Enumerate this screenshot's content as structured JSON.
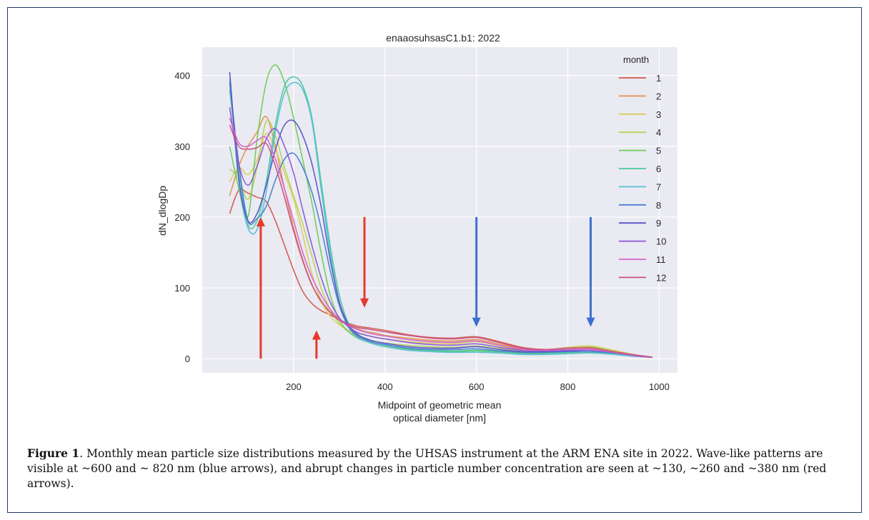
{
  "chart_data": {
    "type": "line",
    "title": "enaaosuhsasC1.b1: 2022",
    "xlabel_line1": "Midpoint of geometric mean",
    "xlabel_line2": "optical diameter [nm]",
    "ylabel": "dN_dlogDp",
    "xlim": [
      0,
      1040
    ],
    "ylim": [
      -20,
      440
    ],
    "xticks": [
      200,
      400,
      600,
      800,
      1000
    ],
    "yticks": [
      0,
      100,
      200,
      300,
      400
    ],
    "grid": true,
    "legend_title": "month",
    "legend_position": "top-right",
    "x": [
      60,
      80,
      100,
      120,
      140,
      160,
      180,
      200,
      220,
      240,
      260,
      280,
      300,
      320,
      340,
      360,
      380,
      400,
      450,
      500,
      550,
      600,
      650,
      700,
      750,
      800,
      850,
      900,
      950,
      985
    ],
    "series": [
      {
        "name": "1",
        "color": "#d4584a",
        "values": [
          205,
          238,
          234,
          228,
          222,
          195,
          160,
          125,
          95,
          78,
          68,
          62,
          55,
          50,
          46,
          44,
          42,
          40,
          34,
          30,
          29,
          31,
          24,
          16,
          13,
          15,
          16,
          11,
          5,
          2
        ]
      },
      {
        "name": "2",
        "color": "#e2914a",
        "values": [
          230,
          272,
          300,
          320,
          342,
          300,
          240,
          185,
          140,
          105,
          80,
          65,
          55,
          47,
          42,
          38,
          36,
          33,
          29,
          26,
          25,
          27,
          21,
          14,
          12,
          14,
          15,
          10,
          4,
          2
        ]
      },
      {
        "name": "3",
        "color": "#d9ce5a",
        "values": [
          250,
          270,
          260,
          280,
          318,
          295,
          262,
          225,
          175,
          120,
          82,
          60,
          48,
          40,
          36,
          33,
          30,
          28,
          24,
          22,
          21,
          24,
          18,
          12,
          12,
          16,
          18,
          12,
          5,
          2
        ]
      },
      {
        "name": "4",
        "color": "#b3d45a",
        "values": [
          268,
          255,
          225,
          270,
          335,
          315,
          270,
          230,
          190,
          145,
          100,
          70,
          50,
          38,
          31,
          27,
          24,
          22,
          19,
          17,
          16,
          18,
          14,
          11,
          11,
          14,
          17,
          11,
          5,
          2
        ]
      },
      {
        "name": "5",
        "color": "#6ccc5c",
        "values": [
          300,
          240,
          200,
          310,
          390,
          415,
          390,
          340,
          280,
          220,
          150,
          90,
          55,
          38,
          29,
          24,
          20,
          17,
          13,
          11,
          10,
          11,
          9,
          7,
          7,
          8,
          9,
          7,
          4,
          2
        ]
      },
      {
        "name": "6",
        "color": "#49c99a",
        "values": [
          380,
          270,
          190,
          195,
          250,
          330,
          385,
          398,
          385,
          340,
          250,
          160,
          90,
          50,
          35,
          27,
          22,
          19,
          14,
          12,
          11,
          12,
          10,
          8,
          8,
          9,
          10,
          8,
          4,
          2
        ]
      },
      {
        "name": "7",
        "color": "#55bfd4",
        "values": [
          395,
          250,
          185,
          182,
          235,
          320,
          375,
          390,
          380,
          335,
          240,
          150,
          80,
          45,
          30,
          24,
          20,
          17,
          12,
          10,
          9,
          9,
          8,
          6,
          6,
          7,
          8,
          6,
          3,
          2
        ]
      },
      {
        "name": "8",
        "color": "#4b80cf",
        "values": [
          390,
          275,
          195,
          198,
          215,
          252,
          282,
          290,
          270,
          235,
          185,
          125,
          75,
          45,
          32,
          26,
          22,
          20,
          15,
          13,
          13,
          14,
          11,
          9,
          9,
          10,
          10,
          8,
          4,
          2
        ]
      },
      {
        "name": "9",
        "color": "#5753c9",
        "values": [
          405,
          255,
          195,
          205,
          245,
          295,
          330,
          336,
          315,
          275,
          215,
          140,
          80,
          48,
          34,
          28,
          24,
          22,
          17,
          15,
          15,
          17,
          13,
          10,
          10,
          11,
          12,
          9,
          5,
          2
        ]
      },
      {
        "name": "10",
        "color": "#8a58d3",
        "values": [
          355,
          275,
          245,
          272,
          310,
          325,
          300,
          262,
          210,
          160,
          115,
          80,
          58,
          45,
          37,
          33,
          30,
          28,
          23,
          20,
          19,
          21,
          16,
          12,
          11,
          12,
          12,
          9,
          4,
          2
        ]
      },
      {
        "name": "11",
        "color": "#d463cc",
        "values": [
          340,
          305,
          300,
          308,
          312,
          282,
          240,
          195,
          150,
          115,
          90,
          70,
          56,
          47,
          41,
          37,
          34,
          32,
          27,
          24,
          23,
          25,
          19,
          13,
          12,
          13,
          13,
          9,
          4,
          2
        ]
      },
      {
        "name": "12",
        "color": "#c95080",
        "values": [
          330,
          300,
          296,
          298,
          304,
          272,
          228,
          180,
          138,
          104,
          82,
          66,
          54,
          48,
          44,
          42,
          40,
          38,
          33,
          29,
          28,
          30,
          23,
          15,
          13,
          15,
          15,
          10,
          5,
          2
        ]
      }
    ],
    "annotations": [
      {
        "type": "arrow",
        "direction": "up",
        "color": "#e53a2d",
        "x": 128,
        "from_y": 0,
        "to_y": 200
      },
      {
        "type": "arrow",
        "direction": "up",
        "color": "#e53a2d",
        "x": 250,
        "from_y": 0,
        "to_y": 40
      },
      {
        "type": "arrow",
        "direction": "down",
        "color": "#e53a2d",
        "x": 355,
        "from_y": 200,
        "to_y": 72
      },
      {
        "type": "arrow",
        "direction": "down",
        "color": "#3d6fcf",
        "x": 600,
        "from_y": 200,
        "to_y": 45
      },
      {
        "type": "arrow",
        "direction": "down",
        "color": "#3d6fcf",
        "x": 850,
        "from_y": 200,
        "to_y": 45
      }
    ]
  },
  "caption": {
    "label": "Figure 1",
    "text": ". Monthly mean particle size distributions measured by the UHSAS instrument at the ARM ENA site in 2022. Wave-like patterns are visible at ~600 and ~ 820 nm (blue arrows), and abrupt changes in particle number concentration are seen at ~130, ~260 and ~380 nm (red arrows)."
  }
}
